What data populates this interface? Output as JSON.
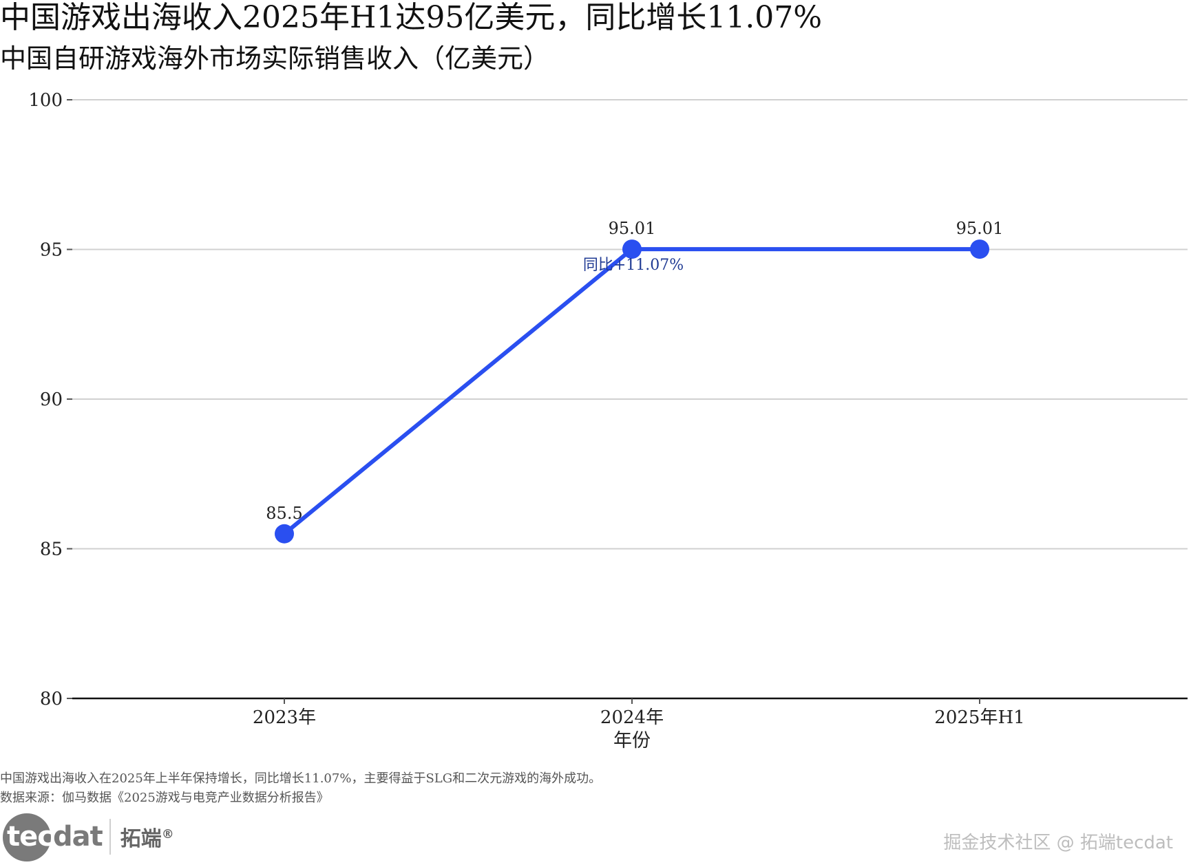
{
  "header": {
    "title": "中国游戏出海收入2025年H1达95亿美元，同比增长11.07%",
    "subtitle": "中国自研游戏海外市场实际销售收入（亿美元）"
  },
  "chart_data": {
    "type": "line",
    "categories": [
      "2023年",
      "2024年",
      "2025年H1"
    ],
    "values": [
      85.5,
      95.01,
      95.01
    ],
    "data_labels": [
      "85.5",
      "95.01",
      "95.01"
    ],
    "xlabel": "年份",
    "ylabel": "",
    "ylim": [
      80,
      100
    ],
    "yticks": [
      80,
      85,
      90,
      95,
      100
    ],
    "grid": true,
    "annotation": {
      "category": "2024年",
      "text": "同比+11.07%"
    },
    "colors": {
      "line": "#2a4ff0",
      "grid": "#d0d0d0",
      "axis": "#111111",
      "annotation": "#1f3a93"
    }
  },
  "notes": {
    "caption": "中国游戏出海收入在2025年上半年保持增长，同比增长11.07%，主要得益于SLG和二次元游戏的海外成功。",
    "source": "数据来源：伽马数据《2025游戏与电竞产业数据分析报告》"
  },
  "branding": {
    "logo_main": "tecdat",
    "logo_cn": "拓端",
    "logo_mark": "®",
    "watermark": "掘金技术社区 @ 拓端tecdat"
  }
}
